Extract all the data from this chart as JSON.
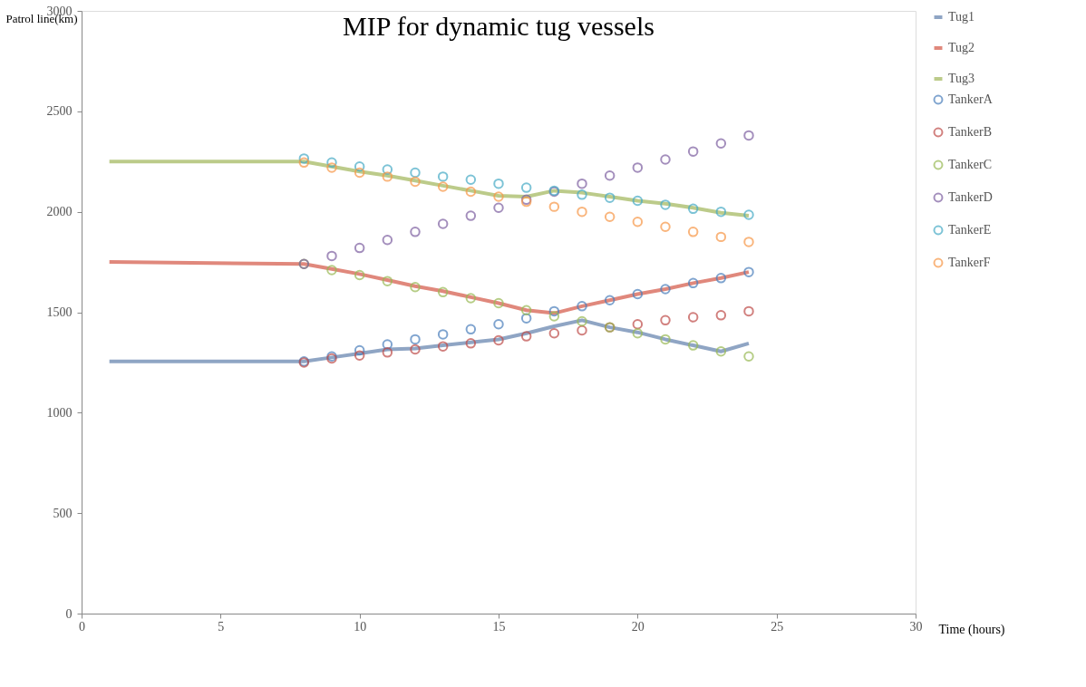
{
  "chart_data": {
    "type": "line",
    "title": "MIP for dynamic tug vessels",
    "xlabel": "Time (hours)",
    "ylabel": "Patrol line(km)",
    "xlim": [
      0,
      30
    ],
    "xticks": [
      0,
      5,
      10,
      15,
      20,
      25,
      30
    ],
    "ylim": [
      0,
      3000
    ],
    "yticks": [
      0,
      500,
      1000,
      1500,
      2000,
      2500,
      3000
    ],
    "grid": false,
    "legend": "right",
    "line_style": "solid",
    "series": [
      {
        "name": "TankerA",
        "type": "scatter",
        "marker": "circle",
        "color": "#4a7ebb",
        "x": [
          8,
          9,
          10,
          11,
          12,
          13,
          14,
          15,
          16,
          17,
          18,
          19,
          20,
          21,
          22,
          23,
          24
        ],
        "values": [
          1255,
          1280,
          1310,
          1340,
          1365,
          1390,
          1415,
          1440,
          1470,
          1505,
          1530,
          1560,
          1590,
          1615,
          1645,
          1670,
          1700
        ]
      },
      {
        "name": "TankerB",
        "type": "scatter",
        "marker": "circle",
        "color": "#be4b48",
        "x": [
          8,
          9,
          10,
          11,
          12,
          13,
          14,
          15,
          16,
          17,
          18,
          19,
          20,
          21,
          22,
          23,
          24
        ],
        "values": [
          1250,
          1270,
          1285,
          1300,
          1315,
          1330,
          1345,
          1360,
          1380,
          1395,
          1410,
          1425,
          1440,
          1460,
          1475,
          1485,
          1505
        ]
      },
      {
        "name": "TankerC",
        "type": "scatter",
        "marker": "circle",
        "color": "#98b954",
        "x": [
          8,
          9,
          10,
          11,
          12,
          13,
          14,
          15,
          16,
          17,
          18,
          19,
          20,
          21,
          22,
          23,
          24
        ],
        "values": [
          1740,
          1710,
          1685,
          1655,
          1625,
          1600,
          1570,
          1545,
          1510,
          1480,
          1455,
          1425,
          1395,
          1365,
          1335,
          1305,
          1280
        ]
      },
      {
        "name": "TankerD",
        "type": "scatter",
        "marker": "circle",
        "color": "#7d5fa0",
        "x": [
          8,
          9,
          10,
          11,
          12,
          13,
          14,
          15,
          16,
          17,
          18,
          19,
          20,
          21,
          22,
          23,
          24
        ],
        "values": [
          1740,
          1780,
          1820,
          1860,
          1900,
          1940,
          1980,
          2020,
          2060,
          2100,
          2140,
          2180,
          2220,
          2260,
          2300,
          2340,
          2380
        ]
      },
      {
        "name": "TankerE",
        "type": "scatter",
        "marker": "circle",
        "color": "#46aac5",
        "x": [
          8,
          9,
          10,
          11,
          12,
          13,
          14,
          15,
          16,
          17,
          18,
          19,
          20,
          21,
          22,
          23,
          24
        ],
        "values": [
          2265,
          2245,
          2225,
          2210,
          2195,
          2175,
          2160,
          2140,
          2120,
          2105,
          2085,
          2070,
          2055,
          2035,
          2015,
          2000,
          1985
        ]
      },
      {
        "name": "TankerF",
        "type": "scatter",
        "marker": "circle",
        "color": "#f79646",
        "x": [
          8,
          9,
          10,
          11,
          12,
          13,
          14,
          15,
          16,
          17,
          18,
          19,
          20,
          21,
          22,
          23,
          24
        ],
        "values": [
          2245,
          2220,
          2195,
          2175,
          2150,
          2125,
          2100,
          2075,
          2050,
          2025,
          2000,
          1975,
          1950,
          1925,
          1900,
          1875,
          1850
        ]
      },
      {
        "name": "Tug1",
        "color": "#8fa5c4",
        "x": [
          1,
          8,
          9,
          10,
          11,
          12,
          13,
          14,
          15,
          16,
          17,
          18,
          19,
          20,
          21,
          22,
          23,
          24
        ],
        "values": [
          1255,
          1255,
          1275,
          1295,
          1315,
          1320,
          1335,
          1350,
          1365,
          1395,
          1430,
          1460,
          1425,
          1400,
          1365,
          1335,
          1305,
          1345
        ]
      },
      {
        "name": "Tug2",
        "color": "#e0887c",
        "x": [
          1,
          8,
          9,
          10,
          11,
          12,
          13,
          14,
          15,
          16,
          17,
          18,
          19,
          20,
          21,
          22,
          23,
          24
        ],
        "values": [
          1750,
          1740,
          1715,
          1690,
          1660,
          1630,
          1605,
          1575,
          1545,
          1510,
          1495,
          1530,
          1560,
          1590,
          1615,
          1645,
          1670,
          1700
        ]
      },
      {
        "name": "Tug3",
        "color": "#bccb8a",
        "x": [
          1,
          8,
          9,
          10,
          11,
          12,
          13,
          14,
          15,
          16,
          17,
          18,
          19,
          20,
          21,
          22,
          23,
          24
        ],
        "values": [
          2250,
          2250,
          2225,
          2200,
          2180,
          2155,
          2130,
          2105,
          2080,
          2075,
          2105,
          2095,
          2075,
          2055,
          2040,
          2020,
          1995,
          1980
        ]
      }
    ]
  }
}
